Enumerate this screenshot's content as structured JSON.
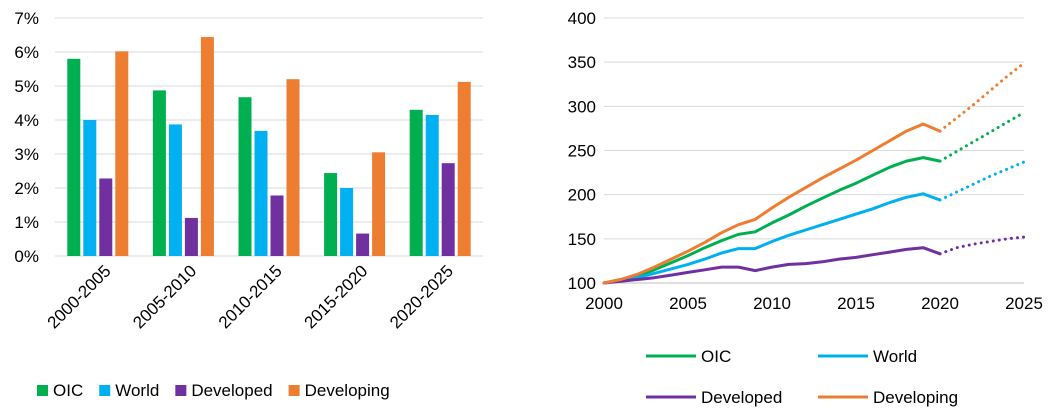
{
  "colors": {
    "oic": "#00b050",
    "world": "#00b0f0",
    "developed": "#7030a0",
    "developing": "#ed7d31",
    "grid": "#d9d9d9"
  },
  "chart_data": [
    {
      "type": "bar",
      "categories": [
        "2000-2005",
        "2005-2010",
        "2010-2015",
        "2015-2020",
        "2020-2025"
      ],
      "series": [
        {
          "name": "OIC",
          "color": "#00b050",
          "values": [
            5.8,
            4.87,
            4.67,
            2.44,
            4.3
          ]
        },
        {
          "name": "World",
          "color": "#00b0f0",
          "values": [
            4.0,
            3.87,
            3.68,
            2.0,
            4.15
          ]
        },
        {
          "name": "Developed",
          "color": "#7030a0",
          "values": [
            2.28,
            1.12,
            1.78,
            0.66,
            2.73
          ]
        },
        {
          "name": "Developing",
          "color": "#ed7d31",
          "values": [
            6.02,
            6.44,
            5.2,
            3.05,
            5.12
          ]
        }
      ],
      "ylim": [
        0,
        7
      ],
      "yticks": [
        "0%",
        "1%",
        "2%",
        "3%",
        "4%",
        "5%",
        "6%",
        "7%"
      ],
      "grid": true,
      "legend": "bottom"
    },
    {
      "type": "line",
      "x": [
        2000,
        2001,
        2002,
        2003,
        2004,
        2005,
        2006,
        2007,
        2008,
        2009,
        2010,
        2011,
        2012,
        2013,
        2014,
        2015,
        2016,
        2017,
        2018,
        2019,
        2020,
        2021,
        2022,
        2023,
        2024,
        2025
      ],
      "actual_through": 2020,
      "series": [
        {
          "name": "OIC",
          "color": "#00b050",
          "values": [
            100,
            104,
            108,
            115,
            123,
            131,
            140,
            148,
            155,
            158,
            168,
            177,
            187,
            196,
            205,
            213,
            222,
            231,
            238,
            242,
            238,
            249,
            260,
            271,
            282,
            293
          ]
        },
        {
          "name": "World",
          "color": "#00b0f0",
          "values": [
            100,
            103,
            106,
            111,
            116,
            121,
            127,
            134,
            139,
            139,
            147,
            154,
            160,
            166,
            172,
            178,
            184,
            191,
            197,
            201,
            194,
            203,
            212,
            221,
            229,
            237
          ]
        },
        {
          "name": "Developed",
          "color": "#7030a0",
          "values": [
            100,
            102,
            104,
            106,
            109,
            112,
            115,
            118,
            118,
            114,
            118,
            121,
            122,
            124,
            127,
            129,
            132,
            135,
            138,
            140,
            133,
            140,
            144,
            147,
            150,
            152
          ]
        },
        {
          "name": "Developing",
          "color": "#ed7d31",
          "values": [
            100,
            104,
            110,
            118,
            127,
            136,
            146,
            157,
            166,
            172,
            185,
            197,
            208,
            219,
            229,
            239,
            250,
            261,
            272,
            280,
            272,
            287,
            302,
            318,
            334,
            349
          ]
        }
      ],
      "xlim": [
        2000,
        2025
      ],
      "xticks": [
        2000,
        2005,
        2010,
        2015,
        2020,
        2025
      ],
      "ylim": [
        100,
        400
      ],
      "yticks": [
        100,
        150,
        200,
        250,
        300,
        350,
        400
      ],
      "grid": true,
      "legend": "bottom"
    }
  ]
}
